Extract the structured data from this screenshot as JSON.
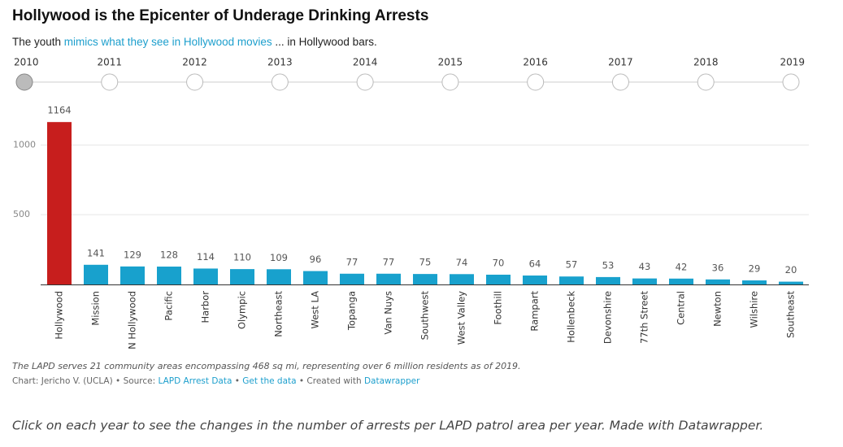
{
  "chart_data": {
    "type": "bar",
    "title": "Hollywood is the Epicenter of Underage Drinking Arrests",
    "subtitle": [
      {
        "text": "The youth ",
        "link": false
      },
      {
        "text": "mimics what they see in Hollywood movies",
        "link": true
      },
      {
        "text": " ... in Hollywood bars.",
        "link": false
      }
    ],
    "years": [
      "2010",
      "2011",
      "2012",
      "2013",
      "2014",
      "2015",
      "2016",
      "2017",
      "2018",
      "2019"
    ],
    "selected_year": "2010",
    "categories": [
      "Hollywood",
      "Mission",
      "N Hollywood",
      "Pacific",
      "Harbor",
      "Olympic",
      "Northeast",
      "West LA",
      "Topanga",
      "Van Nuys",
      "Southwest",
      "West Valley",
      "Foothill",
      "Rampart",
      "Hollenbeck",
      "Devonshire",
      "77th Street",
      "Central",
      "Newton",
      "Wilshire",
      "Southeast"
    ],
    "values": [
      1164,
      141,
      129,
      128,
      114,
      110,
      109,
      96,
      77,
      77,
      75,
      74,
      70,
      64,
      57,
      53,
      43,
      42,
      36,
      29,
      20
    ],
    "colors": [
      "#c71e1d",
      "#18a1cd",
      "#18a1cd",
      "#18a1cd",
      "#18a1cd",
      "#18a1cd",
      "#18a1cd",
      "#18a1cd",
      "#18a1cd",
      "#18a1cd",
      "#18a1cd",
      "#18a1cd",
      "#18a1cd",
      "#18a1cd",
      "#18a1cd",
      "#18a1cd",
      "#18a1cd",
      "#18a1cd",
      "#18a1cd",
      "#18a1cd",
      "#18a1cd"
    ],
    "ylim": [
      0,
      1200
    ],
    "yticks": [
      500,
      1000
    ],
    "grid": true,
    "notes": "The LAPD serves 21 community areas encompassing 468 sq mi, representing over 6 million residents as of 2019.",
    "credit": [
      {
        "text": "Chart: Jericho V. (UCLA) • Source: ",
        "link": false
      },
      {
        "text": "LAPD Arrest Data",
        "link": true
      },
      {
        "text": " • ",
        "link": false
      },
      {
        "text": "Get the data",
        "link": true
      },
      {
        "text": " • Created with ",
        "link": false
      },
      {
        "text": "Datawrapper",
        "link": true
      }
    ]
  },
  "caption": "Click on each year to see the changes in the number of arrests per LAPD patrol area per year. Made with Datawrapper."
}
